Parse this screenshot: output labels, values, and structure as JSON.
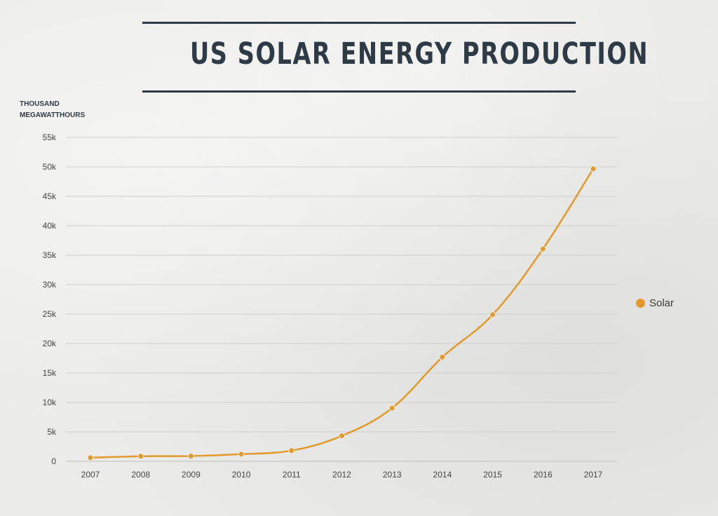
{
  "page": {
    "title": "US SOLAR ENERGY PRODUCTION",
    "y_unit_line1": "THOUSAND",
    "y_unit_line2": "MEGAWATTHOURS"
  },
  "colors": {
    "series": "#e39a2b",
    "title": "#2f3a47",
    "grid": "#cfcfcf"
  },
  "chart_data": {
    "type": "line",
    "title": "US SOLAR ENERGY PRODUCTION",
    "ylabel": "THOUSAND MEGAWATTHOURS",
    "xlabel": "",
    "categories": [
      "2007",
      "2008",
      "2009",
      "2010",
      "2011",
      "2012",
      "2013",
      "2014",
      "2015",
      "2016",
      "2017"
    ],
    "series": [
      {
        "name": "Solar",
        "values": [
          612,
          864,
          891,
          1212,
          1818,
          4327,
          9036,
          17691,
          24893,
          36054,
          49670
        ]
      }
    ],
    "ylim": [
      0,
      55000
    ],
    "yticks": [
      0,
      5000,
      10000,
      15000,
      20000,
      25000,
      30000,
      35000,
      40000,
      45000,
      50000,
      55000
    ],
    "ytick_labels": [
      "0",
      "5k",
      "10k",
      "15k",
      "20k",
      "25k",
      "30k",
      "35k",
      "40k",
      "45k",
      "50k",
      "55k"
    ],
    "grid": true,
    "legend_position": "right"
  }
}
